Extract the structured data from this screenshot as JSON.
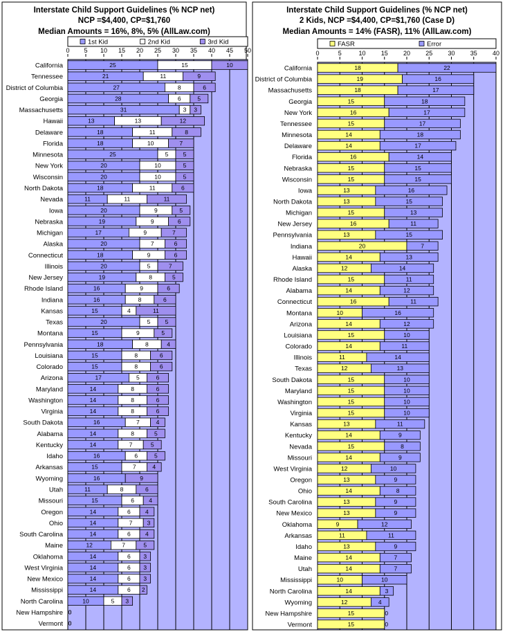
{
  "colors": {
    "plot_bg": "#b3b3ff",
    "series_1st": "#9999ff",
    "series_2nd": "#ffffff",
    "series_3rd": "#9f8fef",
    "series_fasr": "#ffff80",
    "series_error": "#9999ff",
    "border": "#000000"
  },
  "chart_data": [
    {
      "type": "bar",
      "orientation": "horizontal",
      "stacked": true,
      "title": [
        "Interstate Child Support Guidelines (% NCP net)",
        "NCP =$4,400, CP=$1,760",
        "Median Amounts = 16%, 8%, 5%  (AllLaw.com)"
      ],
      "legend": [
        "1st Kid",
        "2nd Kid",
        "3rd Kid"
      ],
      "legend_position": "top",
      "xlim": [
        0,
        50
      ],
      "xticks": [
        0,
        5,
        10,
        15,
        20,
        25,
        30,
        35,
        40,
        45,
        50
      ],
      "grid": true,
      "categories": [
        "California",
        "Tennessee",
        "District of Columbia",
        "Georgia",
        "Massachusetts",
        "Hawaii",
        "Delaware",
        "Florida",
        "Minnesota",
        "New York",
        "Wisconsin",
        "North Dakota",
        "Nevada",
        "Iowa",
        "Nebraska",
        "Michigan",
        "Alaska",
        "Connecticut",
        "Illinois",
        "New Jersey",
        "Rhode Island",
        "Indiana",
        "Kansas",
        "Texas",
        "Montana",
        "Pennsylvania",
        "Louisiana",
        "Colorado",
        "Arizona",
        "Maryland",
        "Washington",
        "Virginia",
        "South Dakota",
        "Alabama",
        "Kentucky",
        "Idaho",
        "Arkansas",
        "Wyoming",
        "Utah",
        "Missouri",
        "Oregon",
        "Ohio",
        "South Carolina",
        "Maine",
        "Oklahoma",
        "West Virginia",
        "New Mexico",
        "Mississippi",
        "North Carolina",
        "New Hampshire",
        "Vermont"
      ],
      "series": [
        {
          "name": "1st Kid",
          "values": [
            25,
            21,
            27,
            28,
            31,
            13,
            18,
            18,
            25,
            20,
            20,
            18,
            11,
            20,
            19,
            17,
            20,
            18,
            20,
            19,
            16,
            16,
            15,
            20,
            15,
            18,
            15,
            15,
            17,
            14,
            14,
            14,
            16,
            14,
            14,
            16,
            15,
            16,
            11,
            15,
            14,
            14,
            14,
            12,
            14,
            14,
            14,
            14,
            10,
            0,
            0
          ]
        },
        {
          "name": "2nd Kid",
          "values": [
            15,
            11,
            8,
            6,
            3,
            13,
            11,
            10,
            5,
            10,
            10,
            11,
            11,
            9,
            9,
            9,
            7,
            9,
            5,
            8,
            9,
            8,
            4,
            5,
            9,
            8,
            8,
            8,
            5,
            8,
            8,
            8,
            7,
            8,
            7,
            6,
            7,
            0,
            8,
            6,
            6,
            7,
            6,
            7,
            6,
            6,
            6,
            6,
            5,
            0,
            0
          ]
        },
        {
          "name": "3rd Kid",
          "values": [
            10,
            9,
            6,
            5,
            3,
            12,
            8,
            7,
            5,
            5,
            5,
            6,
            11,
            5,
            6,
            7,
            6,
            6,
            7,
            5,
            6,
            6,
            11,
            5,
            5,
            4,
            6,
            6,
            6,
            6,
            6,
            6,
            4,
            5,
            5,
            5,
            4,
            9,
            6,
            4,
            4,
            3,
            4,
            5,
            3,
            3,
            3,
            2,
            3,
            0,
            0
          ]
        }
      ]
    },
    {
      "type": "bar",
      "orientation": "horizontal",
      "stacked": true,
      "title": [
        "Interstate Child Support Guidelines (% NCP net)",
        "2 Kids, NCP =$4,400, CP=$1,760 (Case D)",
        "Median Amounts = 14% (FASR), 11% (AllLaw.com)"
      ],
      "legend": [
        "FASR",
        "Error"
      ],
      "legend_position": "top",
      "xlim": [
        0,
        40
      ],
      "xticks": [
        0,
        5,
        10,
        15,
        20,
        25,
        30,
        35,
        40
      ],
      "grid": true,
      "categories": [
        "California",
        "District of Columbia",
        "Massachusetts",
        "Georgia",
        "New York",
        "Tennessee",
        "Minnesota",
        "Delaware",
        "Florida",
        "Nebraska",
        "Wisconsin",
        "Iowa",
        "North Dakota",
        "Michigan",
        "New Jersey",
        "Pennsylvania",
        "Indiana",
        "Hawaii",
        "Alaska",
        "Rhode Island",
        "Alabama",
        "Connecticut",
        "Montana",
        "Arizona",
        "Louisiana",
        "Colorado",
        "Illinois",
        "Texas",
        "South Dakota",
        "Maryland",
        "Washington",
        "Virginia",
        "Kansas",
        "Kentucky",
        "Nevada",
        "Missouri",
        "West Virginia",
        "Oregon",
        "Ohio",
        "South Carolina",
        "New Mexico",
        "Oklahoma",
        "Arkansas",
        "Idaho",
        "Maine",
        "Utah",
        "Mississippi",
        "North Carolina",
        "Wyoming",
        "New Hampshire",
        "Vermont"
      ],
      "series": [
        {
          "name": "FASR",
          "values": [
            18,
            19,
            18,
            15,
            16,
            15,
            14,
            14,
            16,
            15,
            15,
            13,
            13,
            15,
            16,
            13,
            20,
            14,
            12,
            15,
            14,
            16,
            10,
            14,
            15,
            14,
            11,
            12,
            15,
            15,
            15,
            15,
            13,
            14,
            15,
            14,
            12,
            13,
            14,
            13,
            13,
            9,
            11,
            13,
            14,
            14,
            10,
            14,
            12,
            15,
            15
          ]
        },
        {
          "name": "Error",
          "values": [
            22,
            16,
            17,
            18,
            17,
            17,
            18,
            17,
            14,
            15,
            15,
            16,
            15,
            13,
            11,
            15,
            7,
            13,
            14,
            11,
            12,
            11,
            16,
            12,
            10,
            11,
            14,
            13,
            10,
            10,
            10,
            10,
            11,
            9,
            8,
            9,
            10,
            9,
            8,
            9,
            9,
            12,
            11,
            9,
            7,
            7,
            10,
            3,
            4,
            0,
            0
          ]
        }
      ]
    }
  ]
}
